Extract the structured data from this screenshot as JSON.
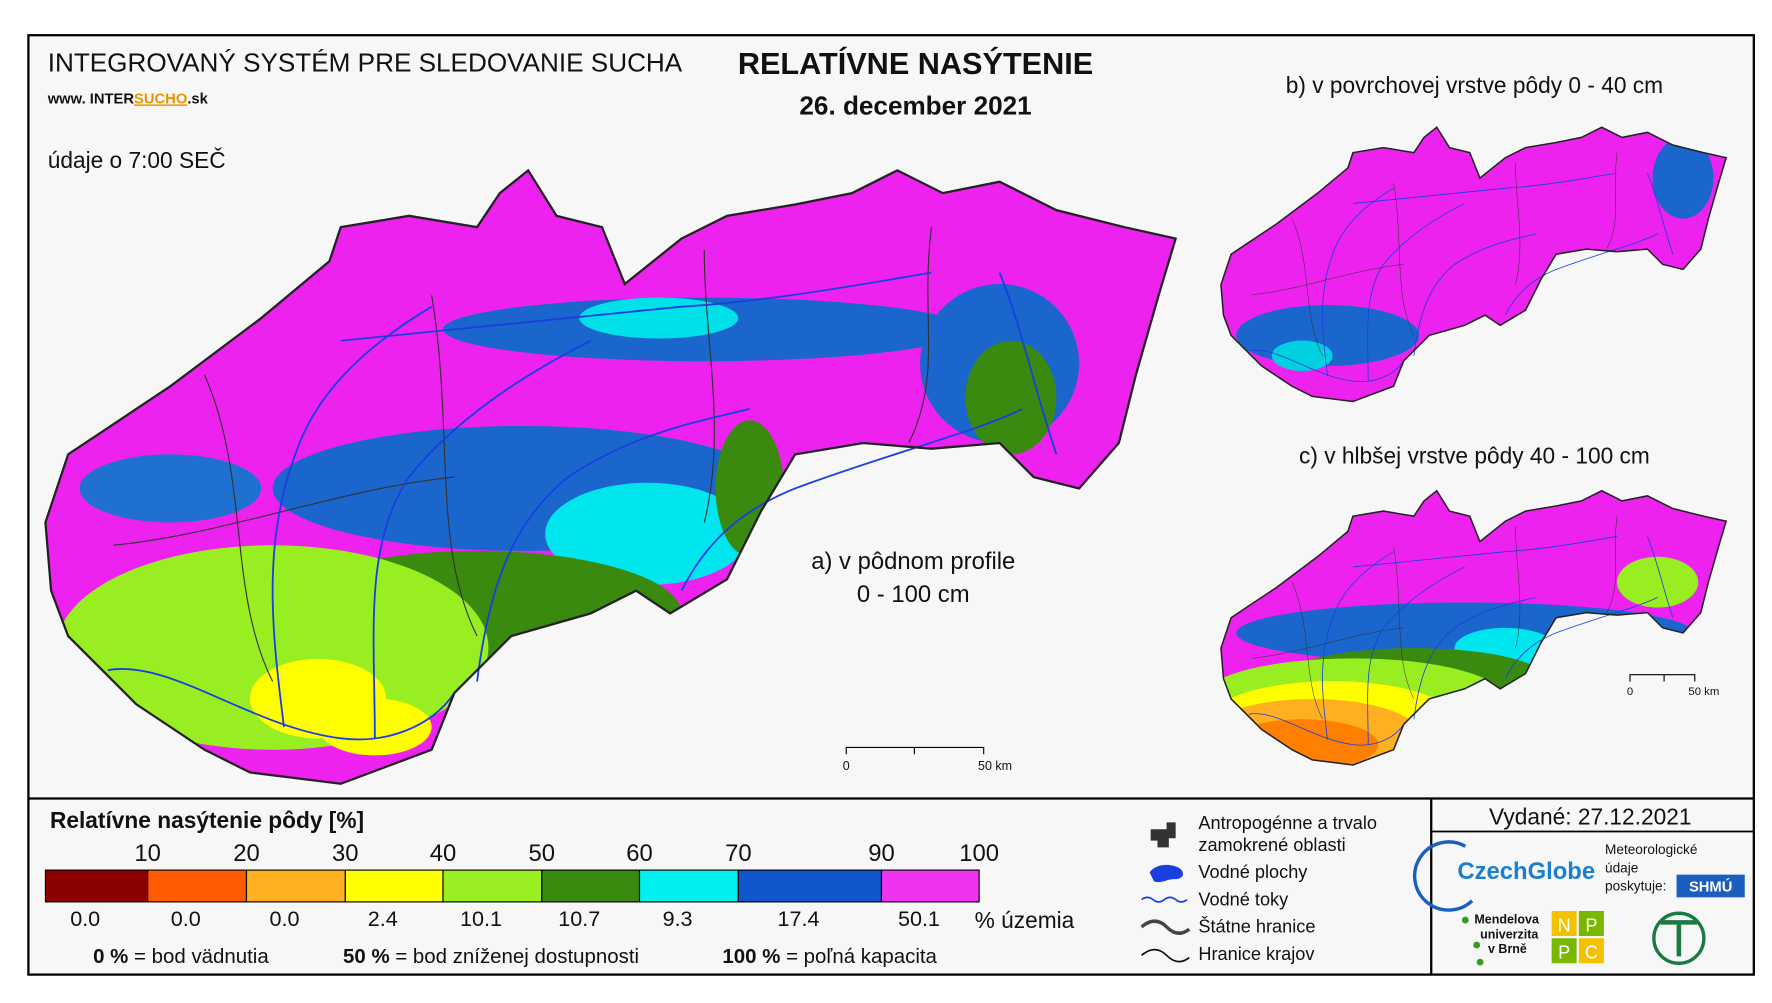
{
  "header": {
    "system": "INTEGROVANÝ SYSTÉM PRE SLEDOVANIE SUCHA",
    "web": [
      "www. INTER",
      "SUCHO",
      ".sk"
    ],
    "time": "údaje o 7:00 SEČ",
    "title": "RELATÍVNE NASÝTENIE",
    "date": "26. december 2021"
  },
  "maps": {
    "a": [
      "a) v pôdnom profile",
      "0 - 100 cm"
    ],
    "b": "b) v povrchovej vrstve pôdy 0 - 40 cm",
    "c": "c) v hlbšej vrstve pôdy 40 - 100 cm",
    "scale": [
      "0",
      "50 km"
    ]
  },
  "legend": {
    "title": "Relatívne nasýtenie pôdy [%]",
    "thresholds": [
      "10",
      "20",
      "30",
      "40",
      "50",
      "60",
      "70",
      "90",
      "100"
    ],
    "classes": [
      {
        "color": "#8b0000",
        "share": "0.0"
      },
      {
        "color": "#ff5a00",
        "share": "0.0"
      },
      {
        "color": "#ffb020",
        "share": "0.0"
      },
      {
        "color": "#ffff00",
        "share": "2.4"
      },
      {
        "color": "#99ee22",
        "share": "10.1"
      },
      {
        "color": "#3a8a10",
        "share": "10.7"
      },
      {
        "color": "#00f0f0",
        "share": "9.3"
      },
      {
        "color": "#1155cc",
        "share": "17.4"
      },
      {
        "color": "#ee33ee",
        "share": "50.1"
      }
    ],
    "unit": "% územia",
    "notes": [
      {
        "value": "0 %",
        "text": "= bod vädnutia"
      },
      {
        "value": "50 %",
        "text": "= bod zníženej dostupnosti"
      },
      {
        "value": "100 %",
        "text": "= poľná kapacita"
      }
    ]
  },
  "symbols": [
    [
      "Antropogénne a trvalo",
      "zamokrené oblasti"
    ],
    [
      "Vodné plochy"
    ],
    [
      "Vodné toky"
    ],
    [
      "Štátne hranice"
    ],
    [
      "Hranice krajov"
    ]
  ],
  "footer": {
    "issued": "Vydané: 27.12.2021",
    "czechglobe": "CzechGlobe",
    "meteo": [
      "Meteorologické",
      "údaje",
      "poskytuje:"
    ],
    "shmu": "SHMÚ",
    "mendel": [
      "Mendelova",
      "univerzita",
      "v Brně"
    ],
    "nppc": [
      "N",
      "P",
      "P",
      "C"
    ]
  }
}
